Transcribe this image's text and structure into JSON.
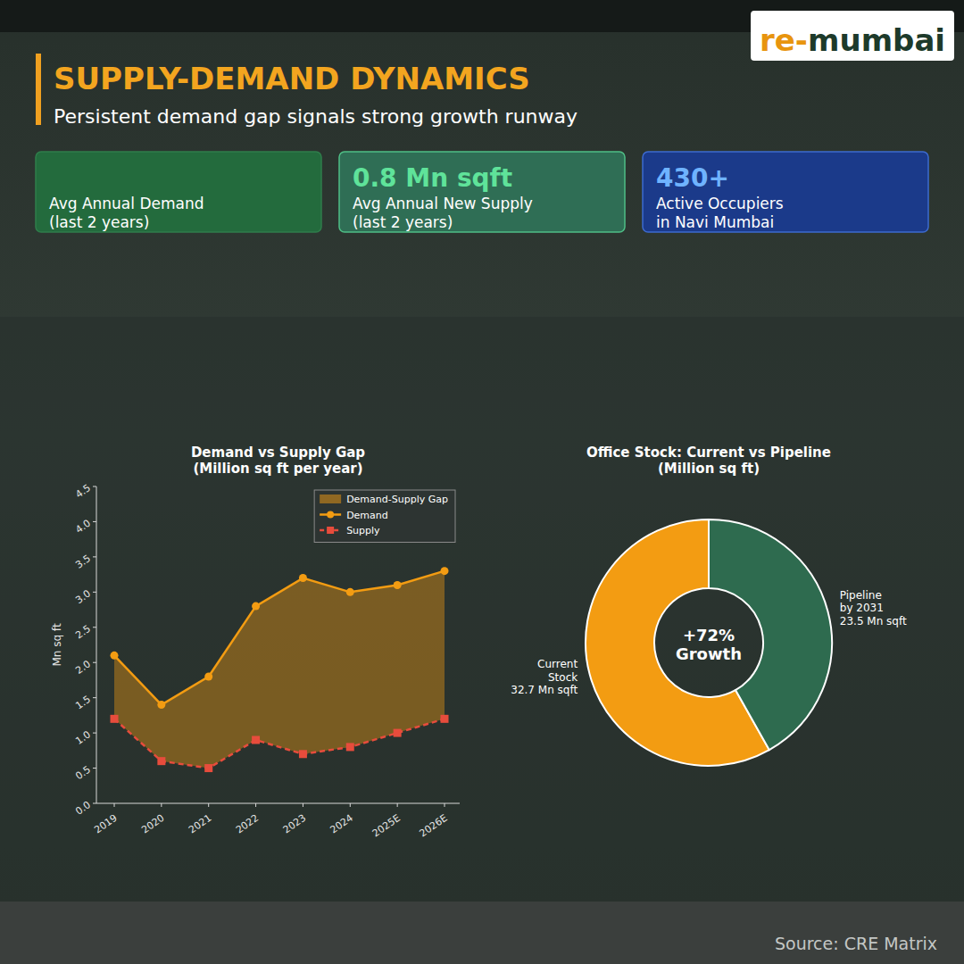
{
  "brand": {
    "prefix": "re-",
    "name": "mumbai"
  },
  "header": {
    "title": "SUPPLY-DEMAND DYNAMICS",
    "subtitle": "Persistent demand gap signals strong growth runway"
  },
  "cards": [
    {
      "label_lines": [
        "Avg Annual Demand",
        "(last 2 years)"
      ]
    },
    {
      "value_text": "0.8 Mn sqft",
      "label_lines": [
        "Avg Annual New Supply",
        "(last 2 years)"
      ]
    },
    {
      "value_text": "430+",
      "label_lines": [
        "Active Occupiers",
        "in Navi Mumbai"
      ]
    }
  ],
  "source": "Source: CRE Matrix",
  "chart_data": [
    {
      "type": "line",
      "title": "Demand vs Supply Gap",
      "subtitle": "(Million sq ft per year)",
      "ylabel": "Mn sq ft",
      "categories": [
        "2019",
        "2020",
        "2021",
        "2022",
        "2023",
        "2024",
        "2025E",
        "2026E"
      ],
      "series": [
        {
          "name": "Demand-Supply Gap",
          "type": "area",
          "color": "#f39c12"
        },
        {
          "name": "Demand",
          "type": "line",
          "color": "#f39c12",
          "marker": "circle",
          "line_style": "solid",
          "values": [
            2.1,
            1.4,
            1.8,
            2.8,
            3.2,
            3.0,
            3.1,
            3.3
          ]
        },
        {
          "name": "Supply",
          "type": "line",
          "color": "#e74c3c",
          "marker": "square",
          "line_style": "dashed",
          "values": [
            1.2,
            0.6,
            0.5,
            0.9,
            0.7,
            0.8,
            1.0,
            1.2
          ]
        }
      ],
      "ylim": [
        0,
        4.5
      ],
      "yticks": [
        {
          "value": 0,
          "label": "0.0"
        },
        0.5,
        {
          "value": 1,
          "label": "1.0"
        },
        1.5,
        {
          "value": 2,
          "label": "2.0"
        },
        2.5,
        {
          "value": 3,
          "label": "3.0"
        },
        3.5,
        {
          "value": 4,
          "label": "4.0"
        },
        4.5
      ],
      "grid": false,
      "legend": "upper right"
    },
    {
      "type": "pie",
      "title": "Office Stock: Current vs Pipeline",
      "subtitle": "(Million sq ft)",
      "categories": [
        "Current Stock",
        "Pipeline by 2031"
      ],
      "values": [
        32.7,
        23.5
      ],
      "value_labels": [
        "32.7 Mn sqft",
        "23.5 Mn sqft"
      ],
      "colors": [
        "#f39c12",
        "#2e6b4f"
      ],
      "annotation": "+72% Growth",
      "data_labels": true
    }
  ]
}
